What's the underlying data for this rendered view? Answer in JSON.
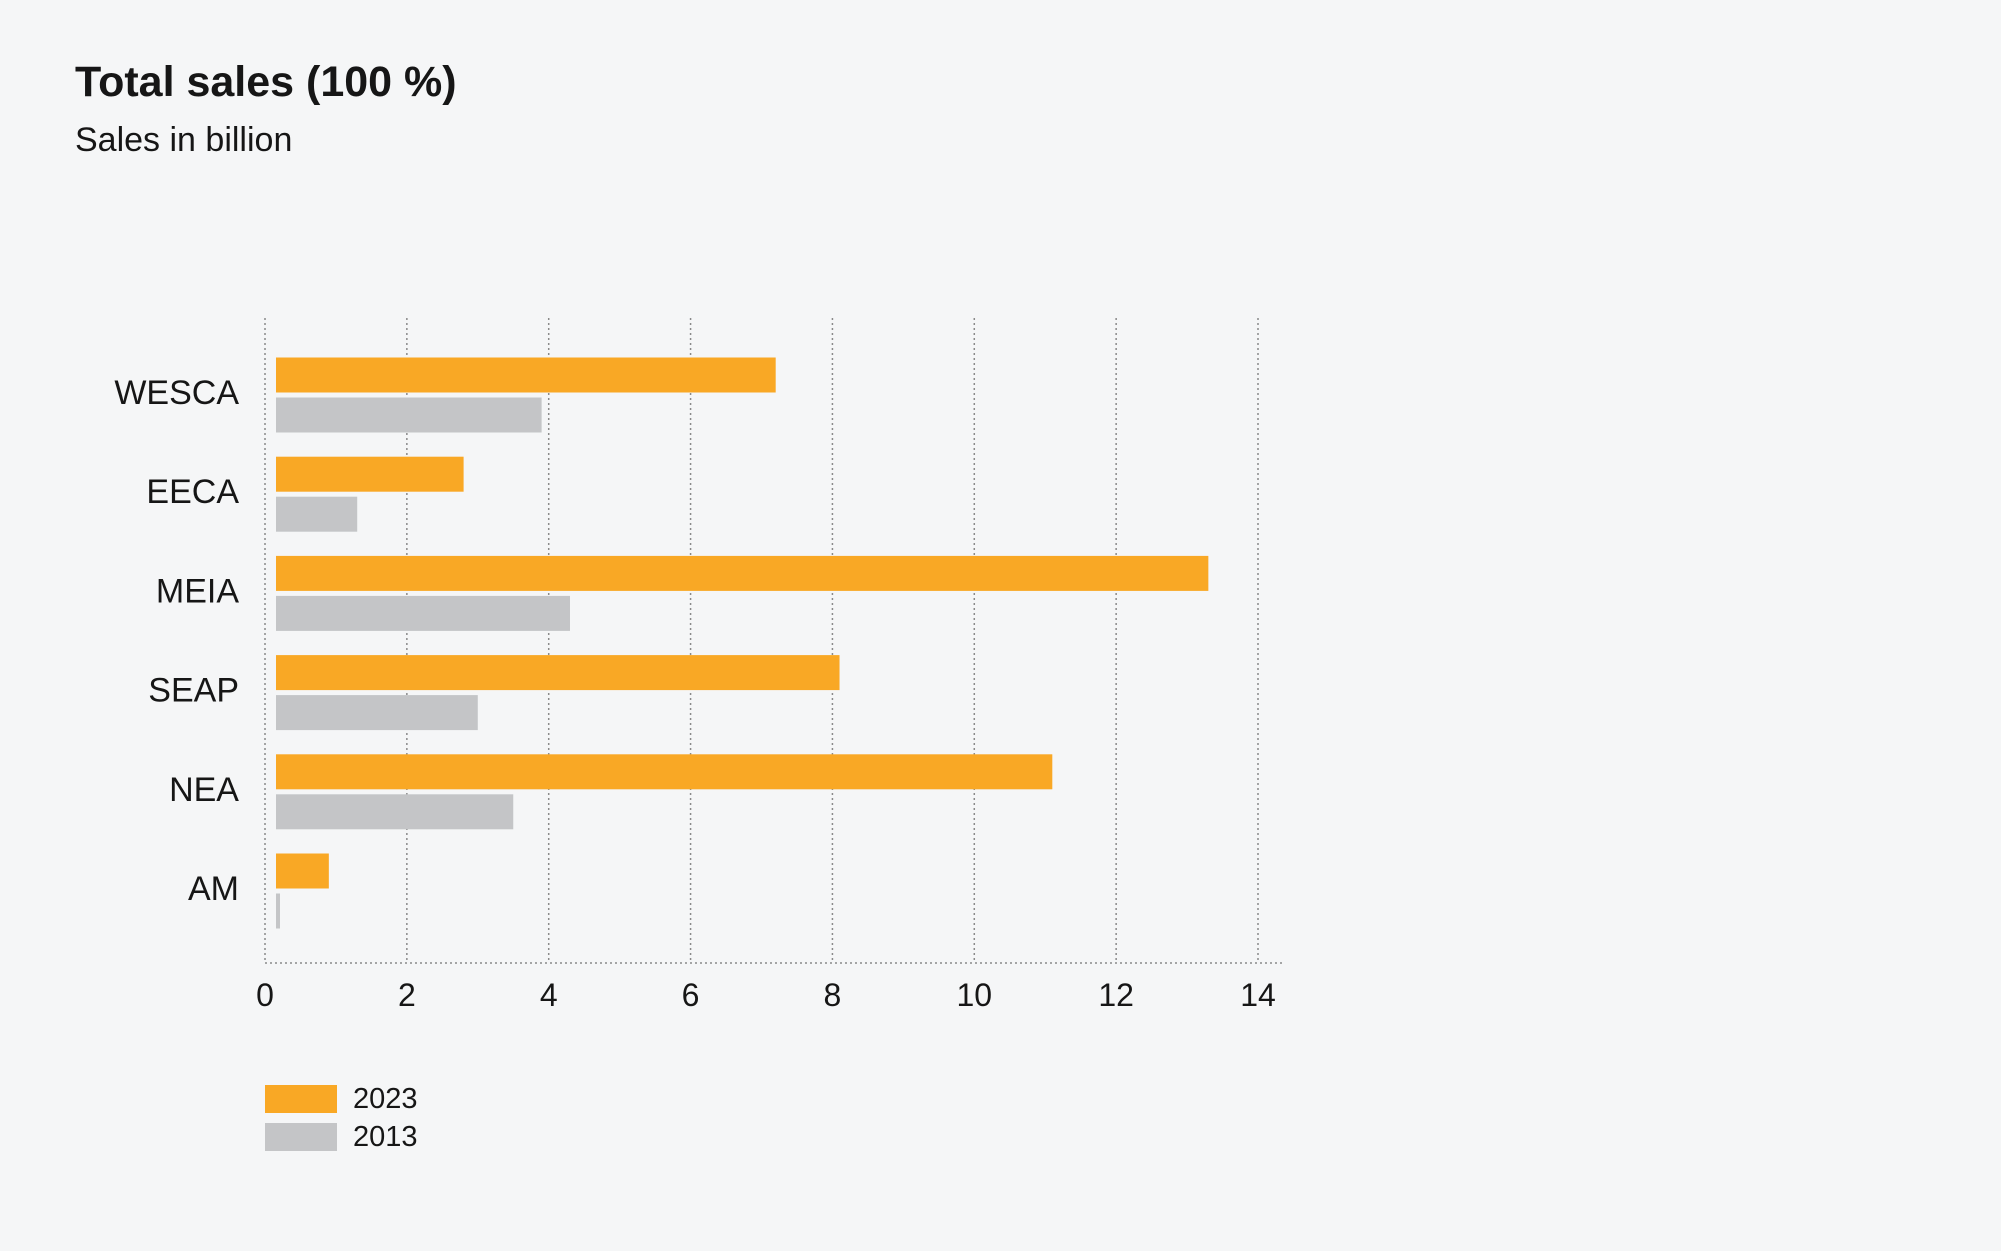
{
  "title": "Total sales (100 %)",
  "subtitle": "Sales in billion",
  "colors": {
    "series_2023": "#f9a825",
    "series_2013": "#c4c5c7",
    "grid": "#8a8a8a",
    "background": "#f5f6f7"
  },
  "legend": {
    "items": [
      {
        "label": "2023",
        "color": "#f9a825"
      },
      {
        "label": "2013",
        "color": "#c4c5c7"
      }
    ]
  },
  "chart_data": {
    "type": "bar",
    "orientation": "horizontal",
    "title": "Total sales (100 %)",
    "subtitle": "Sales in billion",
    "categories": [
      "WESCA",
      "EECA",
      "MEIA",
      "SEAP",
      "NEA",
      "AM"
    ],
    "series": [
      {
        "name": "2023",
        "values": [
          7.2,
          2.8,
          13.3,
          8.1,
          11.1,
          0.9
        ]
      },
      {
        "name": "2013",
        "values": [
          3.9,
          1.3,
          4.3,
          3.0,
          3.5,
          0.1
        ]
      }
    ],
    "xlim": [
      0,
      14
    ],
    "xticks": [
      "0",
      "2",
      "4",
      "6",
      "8",
      "10",
      "12",
      "14"
    ],
    "grid": "vertical dotted",
    "legend_position": "bottom-left"
  }
}
